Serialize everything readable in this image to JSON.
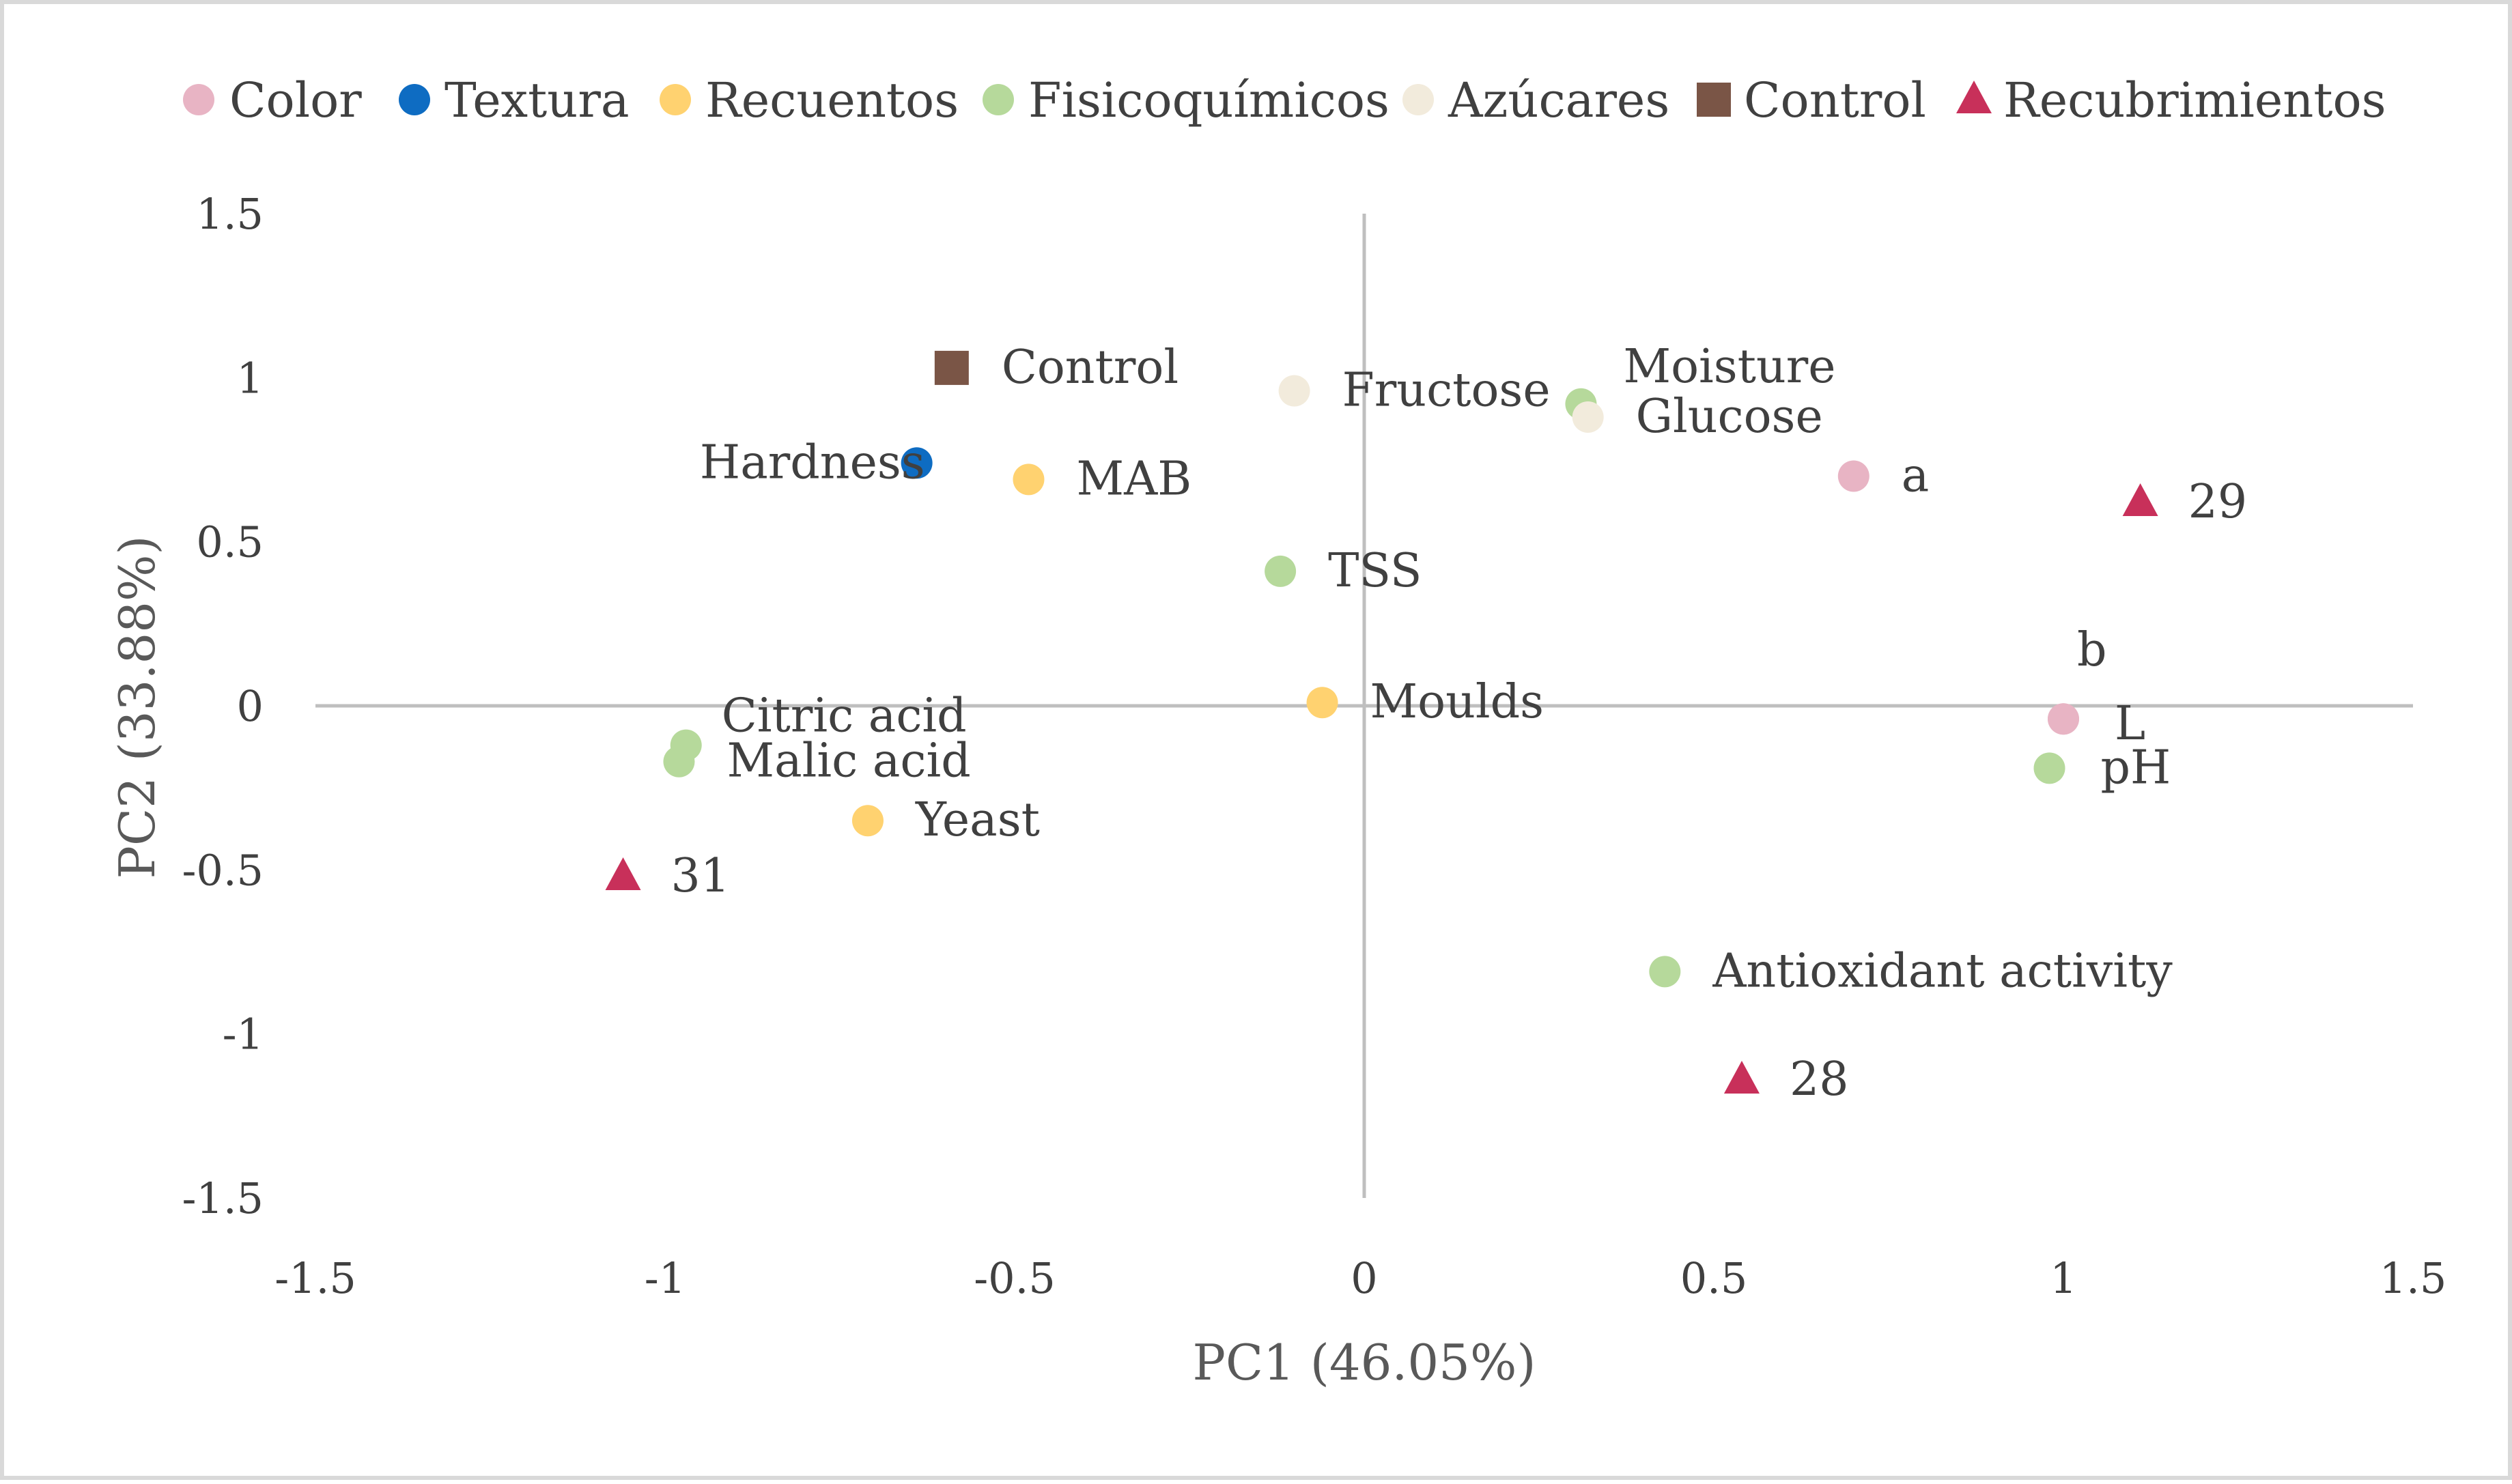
{
  "chart_data": {
    "type": "scatter",
    "title": "",
    "xlabel": "PC1 (46.05%)",
    "ylabel": "PC2 (33.88%)",
    "xlim": [
      -1.5,
      1.5
    ],
    "ylim": [
      -1.5,
      1.5
    ],
    "x_ticks": [
      -1.5,
      -1,
      -0.5,
      0,
      0.5,
      1,
      1.5
    ],
    "y_ticks": [
      -1.5,
      -1,
      -0.5,
      0,
      0.5,
      1,
      1.5
    ],
    "x_tick_labels": [
      "-1.5",
      "-1",
      "-0.5",
      "0",
      "0.5",
      "1",
      "1.5"
    ],
    "y_tick_labels": [
      "-1.5",
      "-1",
      "-0.5",
      "0",
      "0.5",
      "1",
      "1.5"
    ],
    "grid": false,
    "legend_position": "top",
    "series": [
      {
        "name": "Color",
        "marker": "circle",
        "color": "#e8b4c4",
        "points": [
          {
            "label": "a",
            "x": 0.7,
            "y": 0.7
          },
          {
            "label": "b",
            "x": 1.0,
            "y": -0.04
          },
          {
            "label": "L",
            "x": 1.0,
            "y": -0.04
          }
        ]
      },
      {
        "name": "Textura",
        "marker": "circle",
        "color": "#0e6cc2",
        "points": [
          {
            "label": "Hardness",
            "x": -0.64,
            "y": 0.74
          }
        ]
      },
      {
        "name": "Recuentos",
        "marker": "circle",
        "color": "#ffd270",
        "points": [
          {
            "label": "MAB",
            "x": -0.48,
            "y": 0.69
          },
          {
            "label": "Moulds",
            "x": -0.06,
            "y": 0.01
          },
          {
            "label": "Yeast",
            "x": -0.71,
            "y": -0.35
          }
        ]
      },
      {
        "name": "Fisicoquímicos",
        "marker": "circle",
        "color": "#b6d99b",
        "points": [
          {
            "label": "Moisture",
            "x": 0.31,
            "y": 0.92
          },
          {
            "label": "TSS",
            "x": -0.12,
            "y": 0.41
          },
          {
            "label": "Citric acid",
            "x": -0.97,
            "y": -0.12
          },
          {
            "label": "Malic acid",
            "x": -0.98,
            "y": -0.17
          },
          {
            "label": "pH",
            "x": 0.98,
            "y": -0.19
          },
          {
            "label": "Antioxidant activity",
            "x": 0.43,
            "y": -0.81
          }
        ]
      },
      {
        "name": "Azúcares",
        "marker": "circle",
        "color": "#f2ebdc",
        "points": [
          {
            "label": "Fructose",
            "x": -0.1,
            "y": 0.96
          },
          {
            "label": "Glucose",
            "x": 0.32,
            "y": 0.88
          }
        ]
      },
      {
        "name": "Control",
        "marker": "square",
        "color": "#7a5546",
        "points": [
          {
            "label": "Control",
            "x": -0.59,
            "y": 1.03
          }
        ]
      },
      {
        "name": "Recubrimientos",
        "marker": "triangle",
        "color": "#c8305a",
        "points": [
          {
            "label": "29",
            "x": 1.11,
            "y": 0.62
          },
          {
            "label": "31",
            "x": -1.06,
            "y": -0.52
          },
          {
            "label": "28",
            "x": 0.54,
            "y": -1.14
          }
        ]
      }
    ],
    "axis_color": "#bfbfbf",
    "frame_color": "#d9d9d9"
  }
}
